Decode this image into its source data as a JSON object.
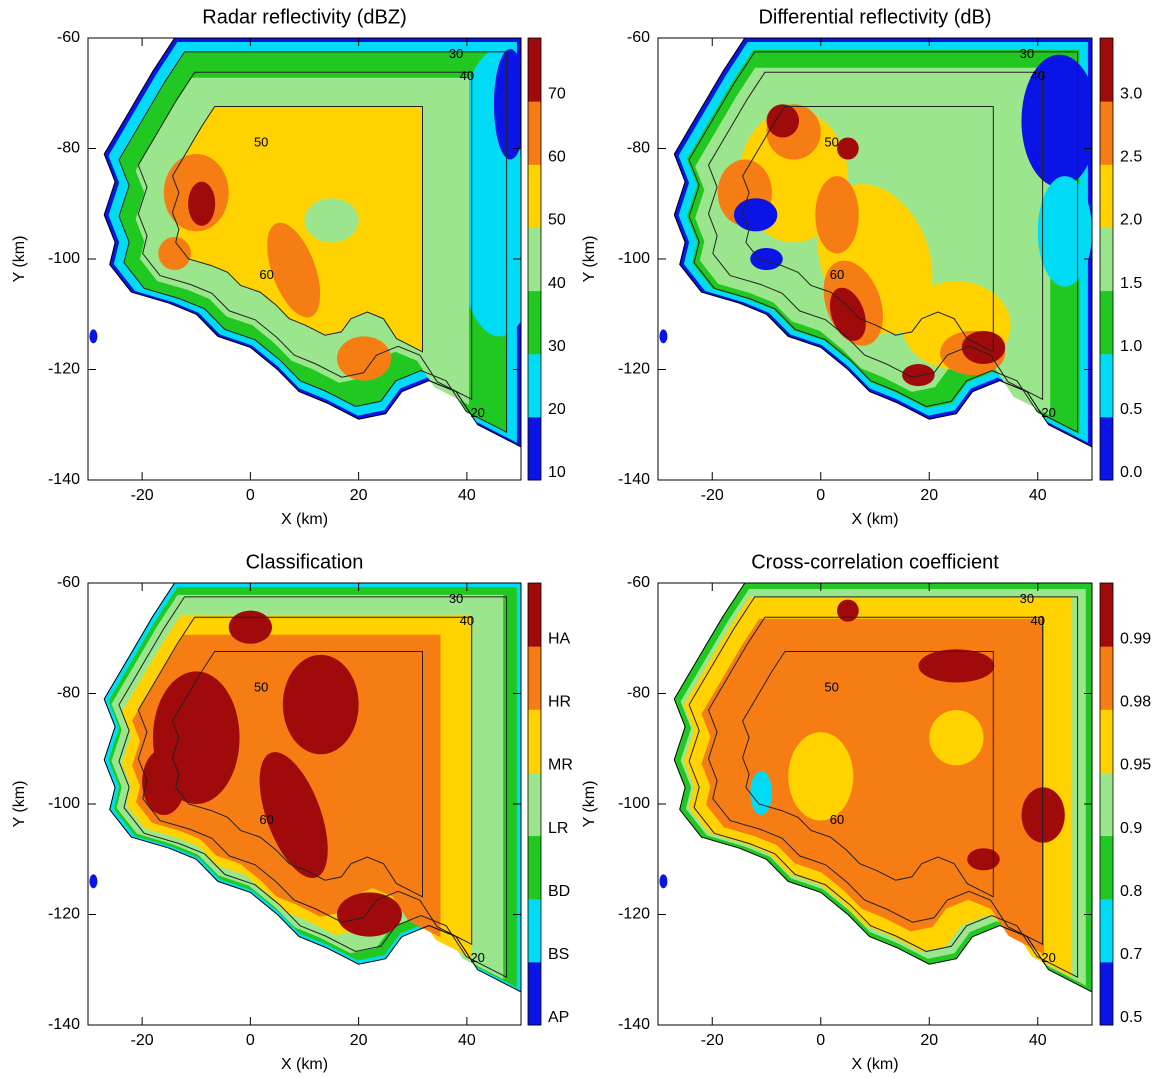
{
  "chart_data": [
    {
      "type": "contour",
      "title": "Radar reflectivity (dBZ)",
      "xlabel": "X (km)",
      "ylabel": "Y (km)",
      "xlim": [
        -30,
        50
      ],
      "ylim": [
        -140,
        -60
      ],
      "xticks": [
        -20,
        0,
        20,
        40
      ],
      "yticks": [
        -140,
        -120,
        -100,
        -80,
        -60
      ],
      "contour_labels": [
        30,
        40,
        50,
        60,
        20
      ],
      "colorbar": {
        "levels": [
          10,
          20,
          30,
          40,
          50,
          60,
          70
        ],
        "colors": [
          "#0a14e6",
          "#00dcf5",
          "#22c822",
          "#9be68c",
          "#ffd200",
          "#f57d14",
          "#a00a0a"
        ]
      }
    },
    {
      "type": "contour",
      "title": "Differential reflectivity (dB)",
      "xlabel": "X (km)",
      "ylabel": "Y (km)",
      "xlim": [
        -30,
        50
      ],
      "ylim": [
        -140,
        -60
      ],
      "xticks": [
        -20,
        0,
        20,
        40
      ],
      "yticks": [
        -140,
        -120,
        -100,
        -80,
        -60
      ],
      "contour_labels": [
        30,
        40,
        50,
        60,
        20
      ],
      "colorbar": {
        "levels": [
          {
            "value": 0,
            "label": "0.0"
          },
          0.5,
          {
            "value": 1,
            "label": "1.0"
          },
          1.5,
          {
            "value": 2,
            "label": "2.0"
          },
          2.5,
          {
            "value": 3,
            "label": "3.0"
          }
        ],
        "colors": [
          "#0a14e6",
          "#00dcf5",
          "#22c822",
          "#9be68c",
          "#ffd200",
          "#f57d14",
          "#a00a0a"
        ]
      }
    },
    {
      "type": "contour",
      "title": "Classification",
      "xlabel": "X (km)",
      "ylabel": "Y (km)",
      "xlim": [
        -30,
        50
      ],
      "ylim": [
        -140,
        -60
      ],
      "xticks": [
        -20,
        0,
        20,
        40
      ],
      "yticks": [
        -140,
        -120,
        -100,
        -80,
        -60
      ],
      "contour_labels": [
        30,
        40,
        50,
        60,
        20
      ],
      "colorbar": {
        "categories": [
          "AP",
          "BS",
          "BD",
          "LR",
          "MR",
          "HR",
          "HA"
        ],
        "colors": [
          "#0a14e6",
          "#00dcf5",
          "#22c822",
          "#9be68c",
          "#ffd200",
          "#f57d14",
          "#a00a0a"
        ]
      }
    },
    {
      "type": "contour",
      "title": "Cross-correlation coefficient",
      "xlabel": "X (km)",
      "ylabel": "Y (km)",
      "xlim": [
        -30,
        50
      ],
      "ylim": [
        -140,
        -60
      ],
      "xticks": [
        -20,
        0,
        20,
        40
      ],
      "yticks": [
        -140,
        -120,
        -100,
        -80,
        -60
      ],
      "contour_labels": [
        30,
        40,
        50,
        60,
        20
      ],
      "colorbar": {
        "levels": [
          0.5,
          0.7,
          0.8,
          0.9,
          0.95,
          0.98,
          0.99
        ],
        "colors": [
          "#0a14e6",
          "#00dcf5",
          "#22c822",
          "#9be68c",
          "#ffd200",
          "#f57d14",
          "#a00a0a"
        ]
      }
    }
  ]
}
